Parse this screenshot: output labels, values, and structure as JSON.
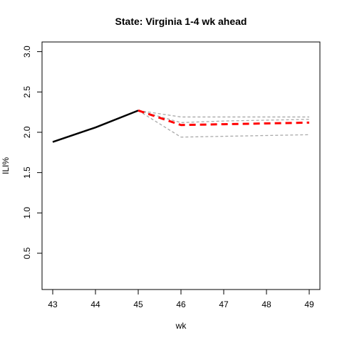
{
  "chart_data": {
    "type": "line",
    "title": "State: Virginia 1-4 wk ahead",
    "xlabel": "wk",
    "ylabel": "ILI%",
    "xlim": [
      42.75,
      49.25
    ],
    "ylim": [
      0.05,
      3.12
    ],
    "x_ticks": [
      43,
      44,
      45,
      46,
      47,
      48,
      49
    ],
    "y_ticks": [
      0.5,
      1.0,
      1.5,
      2.0,
      2.5,
      3.0
    ],
    "y_tick_labels": [
      "0.5",
      "1.0",
      "1.5",
      "2.0",
      "2.5",
      "3.0"
    ],
    "grid": false,
    "series": [
      {
        "role": "observed",
        "style": "solid",
        "color": "#000000",
        "x": [
          43,
          44,
          45
        ],
        "y": [
          1.88,
          2.06,
          2.27
        ]
      },
      {
        "role": "forecast-point",
        "style": "dashed",
        "color": "#ff0000",
        "x": [
          45,
          46,
          47,
          48,
          49
        ],
        "y": [
          2.27,
          2.09,
          2.1,
          2.11,
          2.12
        ]
      },
      {
        "role": "interval-upper",
        "style": "dashed",
        "color": "#a9a9a9",
        "x": [
          45,
          46,
          47,
          48,
          49
        ],
        "y": [
          2.27,
          2.19,
          2.19,
          2.19,
          2.19
        ]
      },
      {
        "role": "interval-mid",
        "style": "dashed",
        "color": "#a9a9a9",
        "x": [
          45,
          46,
          47,
          48,
          49
        ],
        "y": [
          2.27,
          2.12,
          2.14,
          2.15,
          2.16
        ]
      },
      {
        "role": "interval-lower",
        "style": "dashed",
        "color": "#a9a9a9",
        "x": [
          45,
          46,
          47,
          48,
          49
        ],
        "y": [
          2.27,
          1.94,
          1.95,
          1.96,
          1.97
        ]
      }
    ]
  }
}
